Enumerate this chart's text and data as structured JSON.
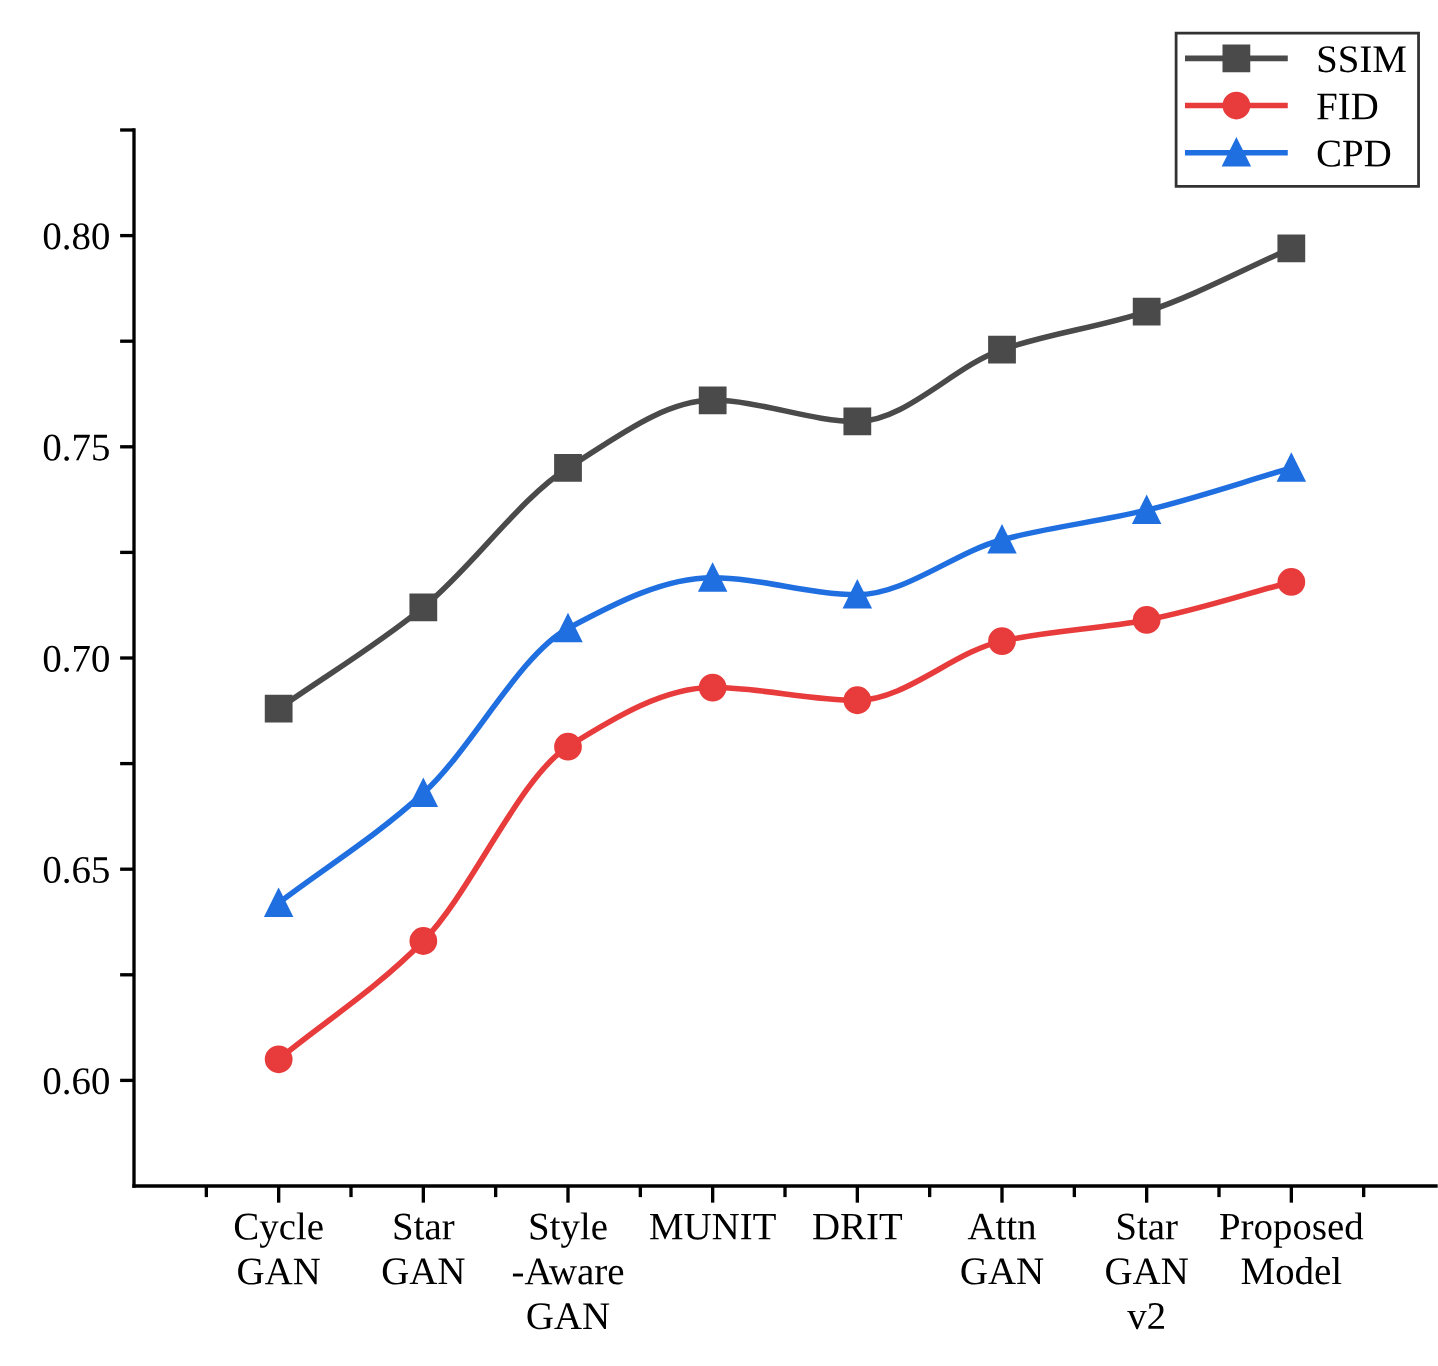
{
  "chart_data": {
    "type": "line",
    "categories": [
      "Cycle\nGAN",
      "Star\nGAN",
      "Style\n-Aware\nGAN",
      "MUNIT",
      "DRIT",
      "Attn\nGAN",
      "Star\nGAN\nv2",
      "Proposed\nModel"
    ],
    "series": [
      {
        "name": "SSIM",
        "color": "#4a4a4a",
        "marker": "square",
        "values": [
          0.688,
          0.712,
          0.745,
          0.761,
          0.756,
          0.773,
          0.782,
          0.797
        ]
      },
      {
        "name": "FID",
        "color": "#e83b3b",
        "marker": "circle",
        "values": [
          0.605,
          0.633,
          0.679,
          0.693,
          0.69,
          0.704,
          0.709,
          0.718
        ]
      },
      {
        "name": "CPD",
        "color": "#1f6fe0",
        "marker": "triangle",
        "values": [
          0.642,
          0.668,
          0.707,
          0.719,
          0.715,
          0.728,
          0.735,
          0.745
        ]
      }
    ],
    "ylim": [
      0.575,
      0.825
    ],
    "yticks": [
      {
        "value": 0.6,
        "label": "0.60"
      },
      {
        "value": 0.625,
        "label": null
      },
      {
        "value": 0.65,
        "label": "0.65"
      },
      {
        "value": 0.675,
        "label": null
      },
      {
        "value": 0.7,
        "label": "0.70"
      },
      {
        "value": 0.725,
        "label": null
      },
      {
        "value": 0.75,
        "label": "0.75"
      },
      {
        "value": 0.775,
        "label": null
      },
      {
        "value": 0.8,
        "label": "0.80"
      },
      {
        "value": 0.825,
        "label": null
      }
    ],
    "grid": false,
    "legend": "top right",
    "line_style": "solid"
  }
}
